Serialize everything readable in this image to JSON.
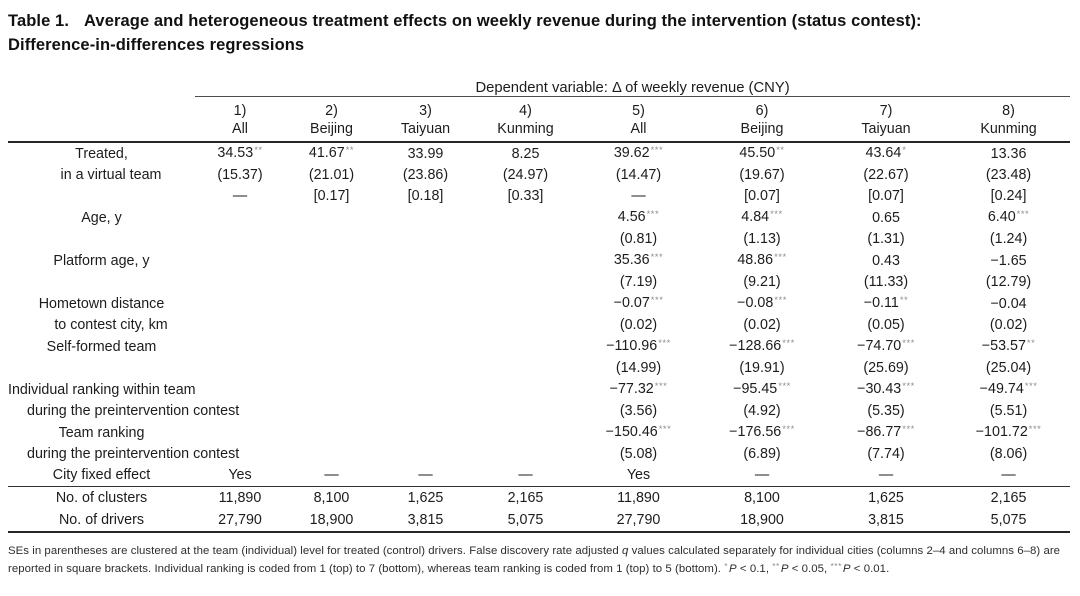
{
  "colors": {
    "star_gray": "#8e8e8e",
    "text": "#1c1c1c",
    "rule": "#262626"
  },
  "title": {
    "prefix": "Table 1.",
    "line1": "Average and heterogeneous treatment effects on weekly revenue during the intervention (status contest):",
    "line2": "Difference-in-differences regressions"
  },
  "table": {
    "dependent_variable_header": "Dependent variable: Δ of weekly revenue (CNY)",
    "column_numbers": [
      "1)",
      "2)",
      "3)",
      "4)",
      "5)",
      "6)",
      "7)",
      "8)"
    ],
    "column_names": [
      "All",
      "Beijing",
      "Taiyuan",
      "Kunming",
      "All",
      "Beijing",
      "Taiyuan",
      "Kunming"
    ],
    "rows": [
      {
        "label": "Treated,",
        "indent": false,
        "cells": [
          "34.53**",
          "41.67**",
          "33.99",
          "8.25",
          "39.62***",
          "45.50**",
          "43.64*",
          "13.36"
        ]
      },
      {
        "label": "in a virtual team",
        "indent": true,
        "cells": [
          "(15.37)",
          "(21.01)",
          "(23.86)",
          "(24.97)",
          "(14.47)",
          "(19.67)",
          "(22.67)",
          "(23.48)"
        ]
      },
      {
        "label": "",
        "indent": false,
        "cells": [
          "—",
          "[0.17]",
          "[0.18]",
          "[0.33]",
          "—",
          "[0.07]",
          "[0.07]",
          "[0.24]"
        ]
      },
      {
        "label": "Age, y",
        "indent": false,
        "cells": [
          "",
          "",
          "",
          "",
          "4.56***",
          "4.84***",
          "0.65",
          "6.40***"
        ]
      },
      {
        "label": "",
        "indent": false,
        "cells": [
          "",
          "",
          "",
          "",
          "(0.81)",
          "(1.13)",
          "(1.31)",
          "(1.24)"
        ]
      },
      {
        "label": "Platform age, y",
        "indent": false,
        "cells": [
          "",
          "",
          "",
          "",
          "35.36***",
          "48.86***",
          "0.43",
          "−1.65"
        ]
      },
      {
        "label": "",
        "indent": false,
        "cells": [
          "",
          "",
          "",
          "",
          "(7.19)",
          "(9.21)",
          "(11.33)",
          "(12.79)"
        ]
      },
      {
        "label": "Hometown distance",
        "indent": false,
        "cells": [
          "",
          "",
          "",
          "",
          "−0.07***",
          "−0.08***",
          "−0.11**",
          "−0.04"
        ]
      },
      {
        "label": "to contest city, km",
        "indent": true,
        "cells": [
          "",
          "",
          "",
          "",
          "(0.02)",
          "(0.02)",
          "(0.05)",
          "(0.02)"
        ]
      },
      {
        "label": "Self-formed team",
        "indent": false,
        "cells": [
          "",
          "",
          "",
          "",
          "−110.96***",
          "−128.66***",
          "−74.70***",
          "−53.57**"
        ]
      },
      {
        "label": "",
        "indent": false,
        "cells": [
          "",
          "",
          "",
          "",
          "(14.99)",
          "(19.91)",
          "(25.69)",
          "(25.04)"
        ]
      },
      {
        "label": "Individual ranking within team",
        "indent": false,
        "cells": [
          "",
          "",
          "",
          "",
          "−77.32***",
          "−95.45***",
          "−30.43***",
          "−49.74***"
        ]
      },
      {
        "label": "during the preintervention contest",
        "indent": true,
        "cells": [
          "",
          "",
          "",
          "",
          "(3.56)",
          "(4.92)",
          "(5.35)",
          "(5.51)"
        ]
      },
      {
        "label": "Team ranking",
        "indent": false,
        "cells": [
          "",
          "",
          "",
          "",
          "−150.46***",
          "−176.56***",
          "−86.77***",
          "−101.72***"
        ]
      },
      {
        "label": "during the preintervention contest",
        "indent": true,
        "cells": [
          "",
          "",
          "",
          "",
          "(5.08)",
          "(6.89)",
          "(7.74)",
          "(8.06)"
        ]
      },
      {
        "label": "City fixed effect",
        "indent": false,
        "cells": [
          "Yes",
          "—",
          "—",
          "—",
          "Yes",
          "—",
          "—",
          "—"
        ]
      }
    ],
    "summary_rows": [
      {
        "label": "No. of clusters",
        "cells": [
          "11,890",
          "8,100",
          "1,625",
          "2,165",
          "11,890",
          "8,100",
          "1,625",
          "2,165"
        ]
      },
      {
        "label": "No. of drivers",
        "cells": [
          "27,790",
          "18,900",
          "3,815",
          "5,075",
          "27,790",
          "18,900",
          "3,815",
          "5,075"
        ]
      }
    ]
  },
  "footnote": {
    "segments": [
      {
        "t": "SEs in parentheses are clustered at the team (individual) level for treated (control) drivers. False discovery rate adjusted "
      },
      {
        "t": "q",
        "s": "i"
      },
      {
        "t": " values calculated separately for individual cities (columns 2–4 and columns 6–8) are reported in square brackets. Individual ranking is coded from 1 (top) to 7 (bottom), whereas team ranking is coded from 1 (top) to 5 (bottom). "
      },
      {
        "t": "*",
        "s": "sup"
      },
      {
        "t": "P",
        "s": "i"
      },
      {
        "t": " < 0.1, "
      },
      {
        "t": "**",
        "s": "sup"
      },
      {
        "t": "P",
        "s": "i"
      },
      {
        "t": " < 0.05, "
      },
      {
        "t": "***",
        "s": "sup"
      },
      {
        "t": "P",
        "s": "i"
      },
      {
        "t": " < 0.01."
      }
    ]
  }
}
